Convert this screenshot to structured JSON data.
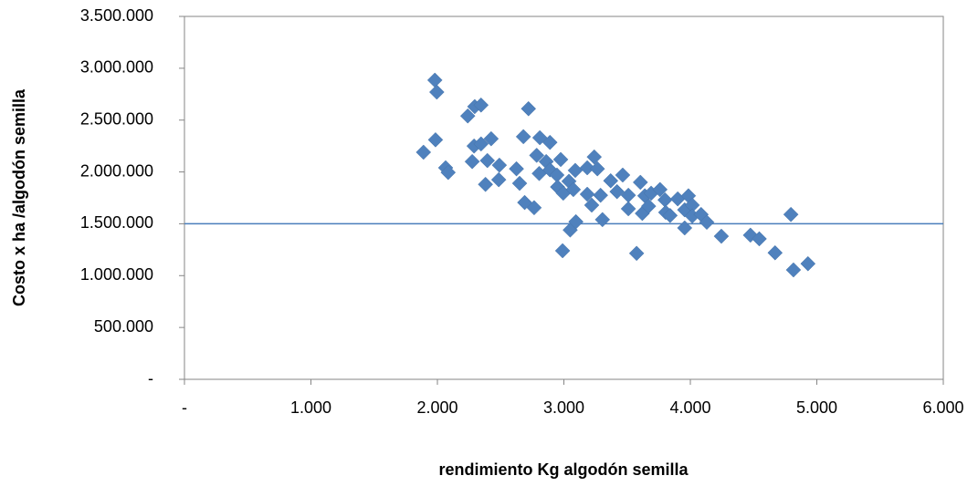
{
  "chart_data": {
    "type": "scatter",
    "x_label": "rendimiento Kg algodón semilla",
    "y_label": "Costo x ha /algodón semilla",
    "color": "#4f81bd",
    "reference_line": 1500000,
    "reference_color": "#4a7ebb",
    "xlim": [
      0,
      6000
    ],
    "ylim": [
      0,
      3500000
    ],
    "xticks": [
      {
        "value": 0,
        "label": "-"
      },
      {
        "value": 1000,
        "label": "1.000"
      },
      {
        "value": 2000,
        "label": "2.000"
      },
      {
        "value": 3000,
        "label": "3.000"
      },
      {
        "value": 4000,
        "label": "4.000"
      },
      {
        "value": 5000,
        "label": "5.000"
      },
      {
        "value": 6000,
        "label": "6.000"
      }
    ],
    "yticks": [
      {
        "value": 0,
        "label": "-"
      },
      {
        "value": 500000,
        "label": "500.000"
      },
      {
        "value": 1000000,
        "label": "1.000.000"
      },
      {
        "value": 1500000,
        "label": "1.500.000"
      },
      {
        "value": 2000000,
        "label": "2.000.000"
      },
      {
        "value": 2500000,
        "label": "2.500.000"
      },
      {
        "value": 3000000,
        "label": "3.000.000"
      },
      {
        "value": 3500000,
        "label": "3.500.000"
      }
    ],
    "x": [
      1980,
      1995,
      1890,
      1985,
      2065,
      2085,
      2240,
      2295,
      2345,
      2275,
      2290,
      2345,
      2425,
      2380,
      2395,
      2490,
      2485,
      2625,
      2650,
      2680,
      2690,
      2765,
      2720,
      2810,
      2890,
      2785,
      2805,
      2860,
      2890,
      2945,
      2975,
      2950,
      2995,
      3040,
      3075,
      3090,
      2990,
      3050,
      3095,
      3185,
      3185,
      3220,
      3240,
      3265,
      3290,
      3305,
      3370,
      3420,
      3465,
      3510,
      3510,
      3575,
      3605,
      3620,
      3640,
      3670,
      3690,
      3760,
      3800,
      3805,
      3840,
      3900,
      3955,
      3985,
      4015,
      3955,
      4015,
      4085,
      4130,
      4245,
      4475,
      4545,
      4670,
      4795,
      4815,
      4930
    ],
    "values": [
      2885000,
      2770000,
      2190000,
      2310000,
      2040000,
      1995000,
      2540000,
      2630000,
      2645000,
      2100000,
      2250000,
      2270000,
      2320000,
      1880000,
      2110000,
      2065000,
      1925000,
      2030000,
      1890000,
      2340000,
      1705000,
      1655000,
      2610000,
      2330000,
      2285000,
      2160000,
      1985000,
      2100000,
      2020000,
      1970000,
      2120000,
      1855000,
      1795000,
      1910000,
      1830000,
      2015000,
      1240000,
      1440000,
      1520000,
      2040000,
      1785000,
      1680000,
      2145000,
      2030000,
      1775000,
      1540000,
      1915000,
      1810000,
      1970000,
      1775000,
      1645000,
      1215000,
      1900000,
      1600000,
      1770000,
      1670000,
      1795000,
      1830000,
      1730000,
      1610000,
      1580000,
      1740000,
      1635000,
      1770000,
      1680000,
      1460000,
      1575000,
      1590000,
      1515000,
      1380000,
      1390000,
      1355000,
      1220000,
      1590000,
      1055000,
      1115000
    ]
  }
}
